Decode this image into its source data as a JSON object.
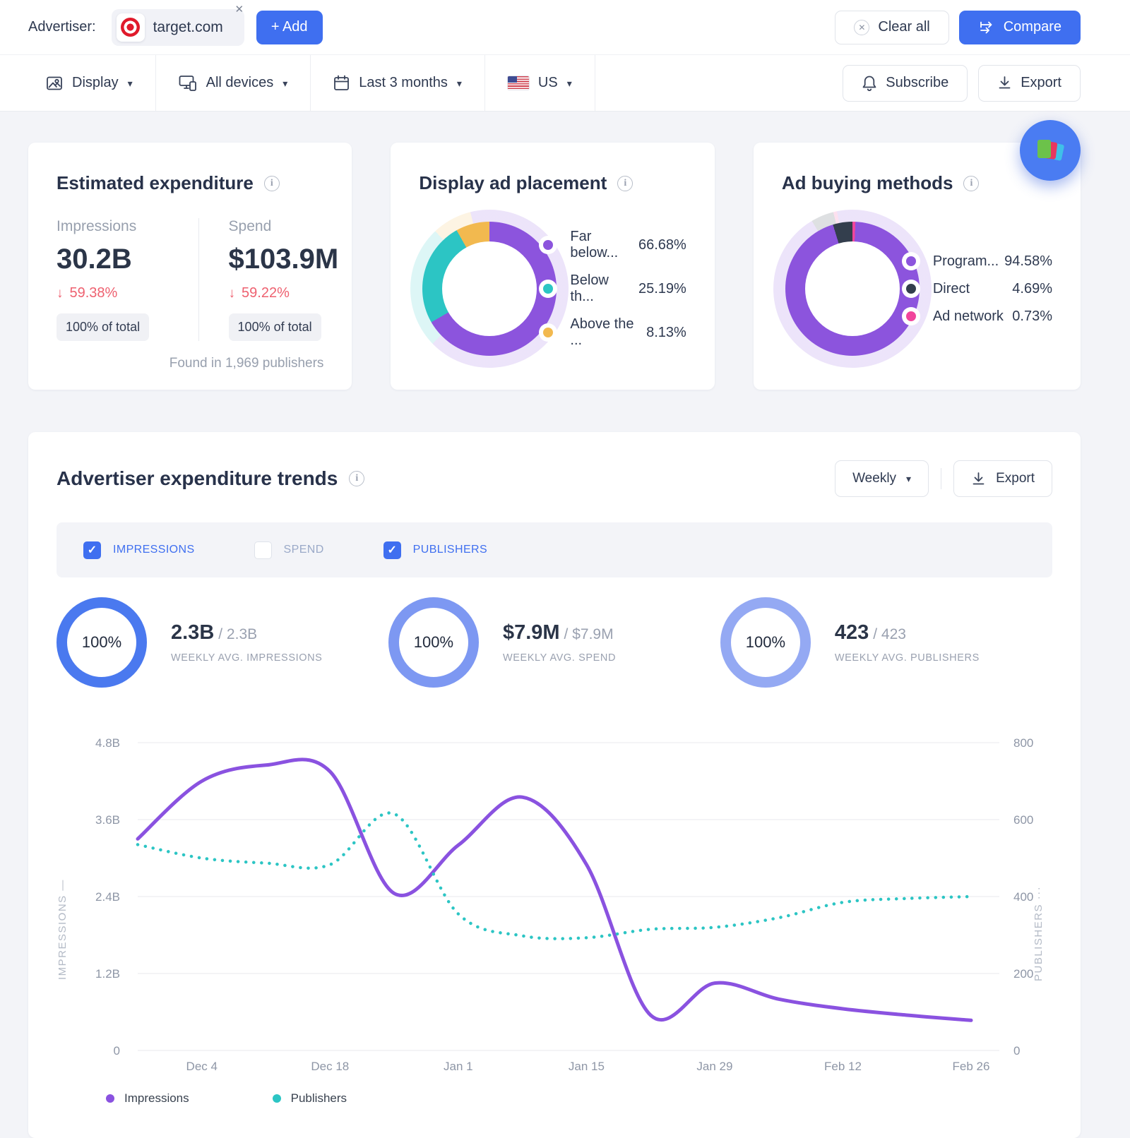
{
  "header": {
    "advertiser_label": "Advertiser:",
    "advertiser_domain": "target.com",
    "add_button": "+ Add",
    "clear_all": "Clear all",
    "compare": "Compare"
  },
  "filters": {
    "display": "Display",
    "devices": "All devices",
    "date_range": "Last 3 months",
    "country": "US",
    "subscribe": "Subscribe",
    "export": "Export"
  },
  "cards": {
    "expenditure": {
      "title": "Estimated expenditure",
      "impressions_label": "Impressions",
      "impressions_value": "30.2B",
      "impressions_change": "59.38%",
      "impressions_total": "100% of total",
      "spend_label": "Spend",
      "spend_value": "$103.9M",
      "spend_change": "59.22%",
      "spend_total": "100% of total",
      "footnote": "Found in 1,969 publishers"
    },
    "placement": {
      "title": "Display ad placement"
    },
    "buying": {
      "title": "Ad buying methods"
    }
  },
  "trends": {
    "title": "Advertiser expenditure trends",
    "period": "Weekly",
    "export": "Export",
    "checkboxes": [
      {
        "label": "IMPRESSIONS",
        "checked": true
      },
      {
        "label": "SPEND",
        "checked": false
      },
      {
        "label": "PUBLISHERS",
        "checked": true
      }
    ],
    "stats": [
      {
        "pct": "100%",
        "value": "2.3B",
        "total": "/ 2.3B",
        "label": "WEEKLY AVG. IMPRESSIONS",
        "ring_color": "#4a79ef"
      },
      {
        "pct": "100%",
        "value": "$7.9M",
        "total": "/ $7.9M",
        "label": "WEEKLY AVG. SPEND",
        "ring_color": "#7d98f2"
      },
      {
        "pct": "100%",
        "value": "423",
        "total": "/ 423",
        "label": "WEEKLY AVG. PUBLISHERS",
        "ring_color": "#94a9f3"
      }
    ],
    "legend": [
      {
        "label": "Impressions",
        "color": "#8a52e0"
      },
      {
        "label": "Publishers",
        "color": "#2cc5c4"
      }
    ]
  },
  "chart_data": [
    {
      "type": "pie",
      "subtype": "donut",
      "title": "Display ad placement",
      "start_deg": 0,
      "items": [
        {
          "label": "Far below...",
          "value_label": "66.68%",
          "pct": 66.68,
          "color": "#8c54dd"
        },
        {
          "label": "Below th...",
          "value_label": "25.19%",
          "pct": 25.19,
          "color": "#2cc5c4"
        },
        {
          "label": "Above the ...",
          "value_label": "8.13%",
          "pct": 8.13,
          "color": "#f2b94f"
        }
      ]
    },
    {
      "type": "pie",
      "subtype": "donut",
      "title": "Ad buying methods",
      "start_deg": 2.6,
      "items": [
        {
          "label": "Program...",
          "value_label": "94.58%",
          "pct": 94.58,
          "color": "#8c54dd"
        },
        {
          "label": "Direct",
          "value_label": "4.69%",
          "pct": 4.69,
          "color": "#333e4d"
        },
        {
          "label": "Ad network",
          "value_label": "0.73%",
          "pct": 0.73,
          "color": "#f1459c"
        }
      ]
    },
    {
      "type": "line",
      "title": "Advertiser expenditure trends",
      "x": [
        "Nov 27",
        "Dec 4",
        "Dec 11",
        "Dec 18",
        "Dec 25",
        "Jan 1",
        "Jan 8",
        "Jan 15",
        "Jan 22",
        "Jan 29",
        "Feb 5",
        "Feb 12",
        "Feb 19",
        "Feb 26"
      ],
      "x_tick_labels": [
        "Dec 4",
        "Dec 18",
        "Jan 1",
        "Jan 15",
        "Jan 29",
        "Feb 12",
        "Feb 26"
      ],
      "x_tick_indices": [
        1,
        3,
        5,
        7,
        9,
        11,
        13
      ],
      "series": [
        {
          "name": "Impressions",
          "axis": "left",
          "style": "solid",
          "color": "#8a52e0",
          "unit": "B",
          "values": [
            3.3,
            4.2,
            4.45,
            4.35,
            2.45,
            3.2,
            3.95,
            2.9,
            0.55,
            1.05,
            0.8,
            0.65,
            0.55,
            0.47
          ]
        },
        {
          "name": "Publishers",
          "axis": "right",
          "style": "dotted",
          "color": "#2cc5c4",
          "unit": "",
          "values": [
            535,
            500,
            487,
            483,
            615,
            355,
            298,
            293,
            315,
            320,
            345,
            385,
            395,
            400
          ]
        }
      ],
      "left_axis": {
        "title": "IMPRESSIONS",
        "marker": "—",
        "ticks": [
          "0",
          "1.2B",
          "2.4B",
          "3.6B",
          "4.8B"
        ],
        "max": 4.8
      },
      "right_axis": {
        "title": "PUBLISHERS",
        "marker": "···",
        "ticks": [
          "0",
          "200",
          "400",
          "600",
          "800"
        ],
        "max": 800
      },
      "grid": true,
      "legend_position": "bottom"
    }
  ],
  "colors": {
    "accent_blue": "#3f6ff0",
    "negative_red": "#ee6170",
    "target_brand_red": "#e01a2b",
    "page_background": "#f3f4f8"
  }
}
